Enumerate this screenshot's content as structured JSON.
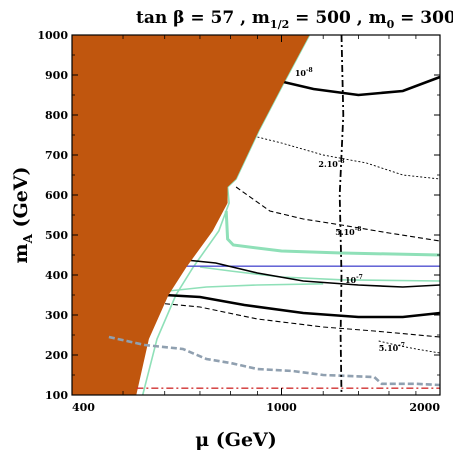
{
  "chart_data": {
    "type": "contour",
    "title_main": "tan β = 57 ,  m",
    "title_sub1": "1/2",
    "title_mid": " = 500 ,  m",
    "title_sub2": "0",
    "title_end": " = 300",
    "xlabel": "μ (GeV)",
    "ylabel_main": "m",
    "ylabel_sub": "A",
    "ylabel_end": " (GeV)",
    "xscale": "log",
    "xlim": [
      400,
      2000
    ],
    "ylim": [
      100,
      1000
    ],
    "xticks": [
      {
        "value": 400,
        "label": "400"
      },
      {
        "value": 1000,
        "label": "1000"
      },
      {
        "value": 2000,
        "label": "2000"
      }
    ],
    "yticks": [
      {
        "value": 100,
        "label": "100"
      },
      {
        "value": 200,
        "label": "200"
      },
      {
        "value": 300,
        "label": "300"
      },
      {
        "value": 400,
        "label": "400"
      },
      {
        "value": 500,
        "label": "500"
      },
      {
        "value": 600,
        "label": "600"
      },
      {
        "value": 700,
        "label": "700"
      },
      {
        "value": 800,
        "label": "800"
      },
      {
        "value": 900,
        "label": "900"
      },
      {
        "value": 1000,
        "label": "1000"
      }
    ],
    "excluded_region": {
      "color": "#c0560e",
      "boundary": [
        [
          400,
          1000
        ],
        [
          1130,
          1000
        ],
        [
          1010,
          880
        ],
        [
          905,
          760
        ],
        [
          820,
          640
        ],
        [
          790,
          620
        ],
        [
          790,
          580
        ],
        [
          740,
          510
        ],
        [
          660,
          420
        ],
        [
          610,
          350
        ],
        [
          560,
          240
        ],
        [
          530,
          100
        ],
        [
          400,
          100
        ]
      ]
    },
    "contours": [
      {
        "name": "10^-8",
        "style": "thick",
        "color": "#000000",
        "points": [
          [
            905,
            940
          ],
          [
            990,
            885
          ],
          [
            1150,
            865
          ],
          [
            1400,
            850
          ],
          [
            1700,
            860
          ],
          [
            2000,
            895
          ]
        ],
        "label_base": "10",
        "label_exp": "-8",
        "label_at": [
          1060,
          897
        ]
      },
      {
        "name": "2.10^-8",
        "style": "dotted",
        "color": "#000000",
        "points": [
          [
            900,
            745
          ],
          [
            1000,
            730
          ],
          [
            1200,
            700
          ],
          [
            1450,
            680
          ],
          [
            1700,
            650
          ],
          [
            2000,
            640
          ]
        ],
        "label_base": "2.10",
        "label_exp": "-8",
        "label_at": [
          1175,
          670
        ]
      },
      {
        "name": "5.10^-8",
        "style": "dashed",
        "color": "#000000",
        "points": [
          [
            820,
            620
          ],
          [
            950,
            560
          ],
          [
            1100,
            540
          ],
          [
            1300,
            525
          ],
          [
            1600,
            505
          ],
          [
            2000,
            485
          ]
        ],
        "label_base": "5.10",
        "label_exp": "-8",
        "label_at": [
          1265,
          500
        ]
      },
      {
        "name": "10^-7",
        "style": "solid",
        "color": "#000000",
        "points": [
          [
            630,
            440
          ],
          [
            750,
            430
          ],
          [
            900,
            405
          ],
          [
            1100,
            385
          ],
          [
            1400,
            375
          ],
          [
            1700,
            370
          ],
          [
            2000,
            375
          ]
        ],
        "label_base": "10",
        "label_exp": "-7",
        "label_at": [
          1320,
          380
        ]
      },
      {
        "name": "",
        "style": "thick",
        "color": "#000000",
        "points": [
          [
            600,
            350
          ],
          [
            700,
            345
          ],
          [
            850,
            325
          ],
          [
            1100,
            305
          ],
          [
            1400,
            295
          ],
          [
            1700,
            295
          ],
          [
            2000,
            305
          ]
        ],
        "label_base": "",
        "label_exp": "",
        "label_at": null
      },
      {
        "name": "",
        "style": "dashed",
        "color": "#000000",
        "points": [
          [
            580,
            330
          ],
          [
            700,
            320
          ],
          [
            900,
            290
          ],
          [
            1200,
            270
          ],
          [
            1500,
            260
          ],
          [
            2000,
            245
          ]
        ],
        "label_base": "",
        "label_exp": "",
        "label_at": null
      },
      {
        "name": "5.10^-7",
        "style": "dotted",
        "color": "#000000",
        "points": [
          [
            1530,
            235
          ],
          [
            1650,
            225
          ],
          [
            1800,
            215
          ],
          [
            2000,
            205
          ]
        ],
        "label_base": "5.10",
        "label_exp": "-7",
        "label_at": [
          1530,
          210
        ]
      }
    ],
    "cosmology_bands": [
      {
        "color": "#8fe0b8",
        "points": [
          [
            1130,
            1000
          ],
          [
            1010,
            880
          ],
          [
            905,
            760
          ],
          [
            820,
            640
          ],
          [
            790,
            620
          ],
          [
            795,
            580
          ],
          [
            760,
            510
          ],
          [
            680,
            420
          ],
          [
            630,
            350
          ],
          [
            580,
            240
          ],
          [
            545,
            100
          ]
        ]
      },
      {
        "color": "#8fe0b8",
        "points": [
          [
            785,
            560
          ],
          [
            790,
            490
          ],
          [
            810,
            475
          ],
          [
            1000,
            460
          ],
          [
            1300,
            455
          ],
          [
            2000,
            450
          ]
        ]
      },
      {
        "color": "#8fe0b8",
        "points": [
          [
            700,
            420
          ],
          [
            800,
            410
          ],
          [
            1000,
            395
          ],
          [
            1300,
            388
          ],
          [
            2000,
            385
          ]
        ]
      },
      {
        "color": "#8fe0b8",
        "points": [
          [
            610,
            360
          ],
          [
            720,
            370
          ],
          [
            900,
            375
          ],
          [
            1200,
            378
          ]
        ]
      }
    ],
    "blue_line": {
      "color": "#5050d0",
      "points": [
        [
          640,
          422
        ],
        [
          2000,
          422
        ]
      ]
    },
    "grey_dashed": {
      "color": "#90a0b0",
      "points": [
        [
          470,
          245
        ],
        [
          550,
          225
        ],
        [
          650,
          215
        ],
        [
          720,
          190
        ],
        [
          800,
          180
        ],
        [
          900,
          165
        ],
        [
          1050,
          160
        ],
        [
          1200,
          150
        ],
        [
          1500,
          145
        ],
        [
          1550,
          128
        ],
        [
          1800,
          128
        ],
        [
          2000,
          125
        ]
      ]
    },
    "red_dashdot": {
      "color": "#d03030",
      "y": 117
    },
    "vertical_dashdot": {
      "color": "#000000",
      "points": [
        [
          1300,
          1000
        ],
        [
          1310,
          800
        ],
        [
          1290,
          600
        ],
        [
          1300,
          400
        ],
        [
          1295,
          250
        ],
        [
          1300,
          100
        ]
      ]
    }
  }
}
